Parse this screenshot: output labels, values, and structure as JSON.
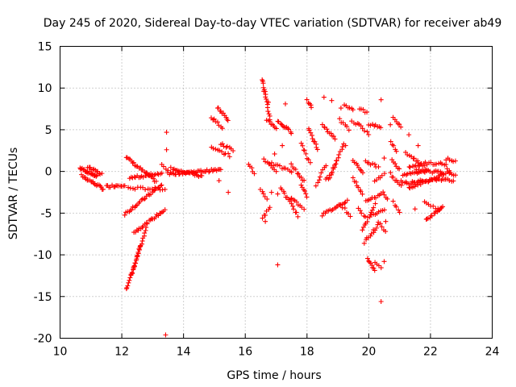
{
  "chart_data": {
    "type": "scatter",
    "title": "Day 245 of 2020, Sidereal Day-to-day VTEC variation (SDTVAR) for receiver ab49",
    "xlabel": "GPS time / hours",
    "ylabel": "SDTVAR / TECUs",
    "xlim": [
      10,
      24
    ],
    "ylim": [
      -20,
      15
    ],
    "x_ticks": [
      "10",
      "12",
      "14",
      "16",
      "18",
      "20",
      "22",
      "24"
    ],
    "y_ticks": [
      "15",
      "10",
      "5",
      "0",
      "-5",
      "-10",
      "-15",
      "-20"
    ],
    "grid": true,
    "marker": "+",
    "series_color": "#ff0000",
    "segments": [
      {
        "from": [
          10.65,
          0.4
        ],
        "to": [
          11.2,
          -0.6
        ],
        "n": 22
      },
      {
        "from": [
          10.7,
          -0.5
        ],
        "to": [
          11.4,
          -2.1
        ],
        "n": 20
      },
      {
        "from": [
          10.9,
          0.5
        ],
        "to": [
          11.35,
          -0.3
        ],
        "n": 12
      },
      {
        "from": [
          11.5,
          -1.8
        ],
        "to": [
          12.1,
          -1.6
        ],
        "n": 14
      },
      {
        "from": [
          12.15,
          1.7
        ],
        "to": [
          13.1,
          -1.2
        ],
        "n": 24
      },
      {
        "from": [
          12.25,
          -0.8
        ],
        "to": [
          13.3,
          -0.2
        ],
        "n": 22
      },
      {
        "from": [
          12.1,
          -5.1
        ],
        "to": [
          13.3,
          -1.6
        ],
        "n": 28
      },
      {
        "from": [
          12.2,
          -2.0
        ],
        "to": [
          13.4,
          -2.1
        ],
        "n": 16
      },
      {
        "from": [
          12.4,
          -7.3
        ],
        "to": [
          13.4,
          -4.6
        ],
        "n": 24
      },
      {
        "from": [
          12.15,
          -14.2
        ],
        "to": [
          12.8,
          -6.8
        ],
        "n": 26
      },
      {
        "from": [
          12.3,
          -12.5
        ],
        "to": [
          12.6,
          -9.0
        ],
        "n": 10
      },
      {
        "from": [
          13.3,
          0.8
        ],
        "to": [
          13.5,
          0.2
        ],
        "n": 4
      },
      {
        "from": [
          13.5,
          -0.3
        ],
        "to": [
          15.2,
          0.2
        ],
        "n": 40
      },
      {
        "from": [
          13.6,
          0.4
        ],
        "to": [
          14.6,
          -0.6
        ],
        "n": 22
      },
      {
        "from": [
          14.9,
          2.8
        ],
        "to": [
          15.5,
          1.9
        ],
        "n": 10
      },
      {
        "from": [
          15.2,
          3.3
        ],
        "to": [
          15.6,
          2.6
        ],
        "n": 8
      },
      {
        "from": [
          15.1,
          7.7
        ],
        "to": [
          15.45,
          6.2
        ],
        "n": 10
      },
      {
        "from": [
          14.9,
          6.5
        ],
        "to": [
          15.25,
          5.3
        ],
        "n": 8
      },
      {
        "from": [
          16.55,
          11.1
        ],
        "to": [
          16.8,
          6.3
        ],
        "n": 16
      },
      {
        "from": [
          16.7,
          6.2
        ],
        "to": [
          17.0,
          5.2
        ],
        "n": 8
      },
      {
        "from": [
          17.05,
          6.0
        ],
        "to": [
          17.5,
          4.7
        ],
        "n": 12
      },
      {
        "from": [
          16.1,
          1.0
        ],
        "to": [
          16.3,
          -0.3
        ],
        "n": 5
      },
      {
        "from": [
          16.6,
          1.5
        ],
        "to": [
          17.0,
          0.1
        ],
        "n": 8
      },
      {
        "from": [
          16.8,
          1.0
        ],
        "to": [
          17.5,
          0.0
        ],
        "n": 12
      },
      {
        "from": [
          17.5,
          0.8
        ],
        "to": [
          17.9,
          -1.2
        ],
        "n": 10
      },
      {
        "from": [
          16.5,
          -2.2
        ],
        "to": [
          16.7,
          -3.2
        ],
        "n": 5
      },
      {
        "from": [
          16.55,
          -5.6
        ],
        "to": [
          16.8,
          -4.4
        ],
        "n": 6
      },
      {
        "from": [
          17.15,
          -1.9
        ],
        "to": [
          17.7,
          -5.3
        ],
        "n": 14
      },
      {
        "from": [
          17.5,
          -3.3
        ],
        "to": [
          17.9,
          -4.4
        ],
        "n": 8
      },
      {
        "from": [
          17.8,
          -1.5
        ],
        "to": [
          18.0,
          -3.1
        ],
        "n": 6
      },
      {
        "from": [
          17.8,
          3.4
        ],
        "to": [
          18.1,
          1.0
        ],
        "n": 8
      },
      {
        "from": [
          18.0,
          8.5
        ],
        "to": [
          18.15,
          7.6
        ],
        "n": 5
      },
      {
        "from": [
          18.05,
          5.2
        ],
        "to": [
          18.35,
          2.6
        ],
        "n": 10
      },
      {
        "from": [
          18.3,
          -1.6
        ],
        "to": [
          18.6,
          0.8
        ],
        "n": 8
      },
      {
        "from": [
          18.5,
          5.5
        ],
        "to": [
          18.9,
          4.0
        ],
        "n": 10
      },
      {
        "from": [
          18.6,
          -1.0
        ],
        "to": [
          18.9,
          0.5
        ],
        "n": 6
      },
      {
        "from": [
          18.7,
          -1.0
        ],
        "to": [
          19.2,
          3.4
        ],
        "n": 14
      },
      {
        "from": [
          18.5,
          -5.2
        ],
        "to": [
          19.3,
          -3.5
        ],
        "n": 18
      },
      {
        "from": [
          19.1,
          -4.0
        ],
        "to": [
          19.4,
          -5.3
        ],
        "n": 6
      },
      {
        "from": [
          19.05,
          6.2
        ],
        "to": [
          19.35,
          5.1
        ],
        "n": 6
      },
      {
        "from": [
          19.2,
          8.0
        ],
        "to": [
          19.5,
          7.3
        ],
        "n": 6
      },
      {
        "from": [
          19.45,
          6.0
        ],
        "to": [
          19.7,
          5.6
        ],
        "n": 5
      },
      {
        "from": [
          19.5,
          1.4
        ],
        "to": [
          19.8,
          -0.3
        ],
        "n": 8
      },
      {
        "from": [
          19.5,
          -0.8
        ],
        "to": [
          19.8,
          -2.8
        ],
        "n": 8
      },
      {
        "from": [
          19.7,
          7.6
        ],
        "to": [
          19.95,
          7.0
        ],
        "n": 5
      },
      {
        "from": [
          19.75,
          5.5
        ],
        "to": [
          20.0,
          4.5
        ],
        "n": 5
      },
      {
        "from": [
          19.8,
          -7.0
        ],
        "to": [
          20.2,
          -4.0
        ],
        "n": 12
      },
      {
        "from": [
          19.65,
          -4.5
        ],
        "to": [
          19.9,
          -5.5
        ],
        "n": 5
      },
      {
        "from": [
          19.85,
          -8.5
        ],
        "to": [
          20.3,
          -6.5
        ],
        "n": 10
      },
      {
        "from": [
          19.9,
          -3.5
        ],
        "to": [
          20.4,
          -2.8
        ],
        "n": 10
      },
      {
        "from": [
          19.9,
          1.2
        ],
        "to": [
          20.3,
          0.6
        ],
        "n": 8
      },
      {
        "from": [
          19.95,
          -10.4
        ],
        "to": [
          20.2,
          -11.8
        ],
        "n": 8
      },
      {
        "from": [
          20.1,
          -5.3
        ],
        "to": [
          20.5,
          -4.5
        ],
        "n": 8
      },
      {
        "from": [
          20.0,
          5.6
        ],
        "to": [
          20.4,
          5.3
        ],
        "n": 8
      },
      {
        "from": [
          20.2,
          -1.2
        ],
        "to": [
          20.5,
          -0.3
        ],
        "n": 6
      },
      {
        "from": [
          20.3,
          -6.0
        ],
        "to": [
          20.55,
          -7.2
        ],
        "n": 5
      },
      {
        "from": [
          20.2,
          -10.8
        ],
        "to": [
          20.4,
          -11.5
        ],
        "n": 4
      },
      {
        "from": [
          20.45,
          -2.6
        ],
        "to": [
          20.6,
          -3.3
        ],
        "n": 4
      },
      {
        "from": [
          20.8,
          6.5
        ],
        "to": [
          21.05,
          5.3
        ],
        "n": 6
      },
      {
        "from": [
          20.7,
          3.6
        ],
        "to": [
          20.9,
          2.4
        ],
        "n": 5
      },
      {
        "from": [
          20.75,
          1.5
        ],
        "to": [
          21.0,
          0.2
        ],
        "n": 6
      },
      {
        "from": [
          20.7,
          -0.3
        ],
        "to": [
          21.05,
          -1.8
        ],
        "n": 8
      },
      {
        "from": [
          20.8,
          -3.6
        ],
        "to": [
          21.0,
          -5.0
        ],
        "n": 5
      },
      {
        "from": [
          21.05,
          -1.1
        ],
        "to": [
          21.4,
          -1.5
        ],
        "n": 8
      },
      {
        "from": [
          21.2,
          2.3
        ],
        "to": [
          21.6,
          1.2
        ],
        "n": 8
      },
      {
        "from": [
          21.3,
          0.6
        ],
        "to": [
          21.8,
          0.8
        ],
        "n": 10
      },
      {
        "from": [
          21.1,
          -0.5
        ],
        "to": [
          21.9,
          0.2
        ],
        "n": 16
      },
      {
        "from": [
          21.3,
          -2.0
        ],
        "to": [
          22.4,
          -0.4
        ],
        "n": 24
      },
      {
        "from": [
          21.4,
          -1.2
        ],
        "to": [
          22.5,
          -1.0
        ],
        "n": 22
      },
      {
        "from": [
          21.55,
          0.1
        ],
        "to": [
          22.6,
          -0.2
        ],
        "n": 20
      },
      {
        "from": [
          21.6,
          1.0
        ],
        "to": [
          22.5,
          0.9
        ],
        "n": 16
      },
      {
        "from": [
          21.8,
          -3.7
        ],
        "to": [
          22.3,
          -4.7
        ],
        "n": 8
      },
      {
        "from": [
          21.85,
          -5.8
        ],
        "to": [
          22.4,
          -4.2
        ],
        "n": 14
      },
      {
        "from": [
          22.5,
          1.5
        ],
        "to": [
          22.8,
          1.2
        ],
        "n": 6
      },
      {
        "from": [
          22.55,
          0.2
        ],
        "to": [
          22.8,
          -0.5
        ],
        "n": 6
      },
      {
        "from": [
          22.5,
          -0.8
        ],
        "to": [
          22.75,
          -1.2
        ],
        "n": 5
      }
    ],
    "points": [
      [
        13.45,
        4.7
      ],
      [
        13.45,
        2.6
      ],
      [
        13.42,
        -19.6
      ],
      [
        15.15,
        -1.1
      ],
      [
        15.45,
        -2.5
      ],
      [
        16.6,
        9.6
      ],
      [
        16.75,
        8.3
      ],
      [
        17.3,
        8.1
      ],
      [
        17.2,
        3.1
      ],
      [
        16.95,
        2.1
      ],
      [
        16.65,
        -6.0
      ],
      [
        16.85,
        -2.5
      ],
      [
        17.05,
        -2.7
      ],
      [
        17.05,
        -11.2
      ],
      [
        17.5,
        -3.2
      ],
      [
        18.55,
        8.9
      ],
      [
        18.8,
        8.5
      ],
      [
        19.1,
        7.6
      ],
      [
        20.4,
        8.6
      ],
      [
        20.5,
        1.6
      ],
      [
        20.7,
        5.6
      ],
      [
        21.3,
        4.4
      ],
      [
        20.4,
        -15.6
      ],
      [
        20.15,
        -7.0
      ],
      [
        20.5,
        -10.8
      ],
      [
        21.5,
        -4.5
      ],
      [
        20.55,
        -6.0
      ],
      [
        18.95,
        1.3
      ],
      [
        19.25,
        3.1
      ],
      [
        21.6,
        3.1
      ]
    ]
  }
}
